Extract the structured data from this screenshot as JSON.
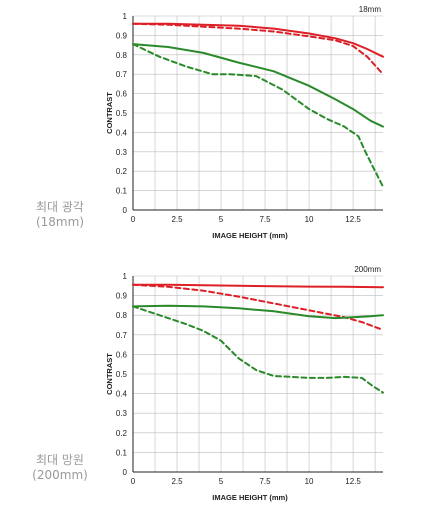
{
  "side_labels": [
    {
      "line1": "최대 광각",
      "line2": "(18mm)"
    },
    {
      "line1": "최대 망원",
      "line2": "(200mm)"
    }
  ],
  "colors": {
    "red": "#dd1f26",
    "green": "#2a8a2a",
    "grid": "#bdbdbd",
    "axis": "#222222"
  },
  "chart_data": [
    {
      "type": "line",
      "title": "18mm",
      "xlabel": "IMAGE HEIGHT (mm)",
      "ylabel": "CONTRAST",
      "xlim": [
        0,
        14.2
      ],
      "ylim": [
        0,
        1
      ],
      "xticks": [
        "0",
        "2.5",
        "5",
        "7.5",
        "10",
        "12.5"
      ],
      "yticks": [
        "0",
        "0.1",
        "0.2",
        "0.3",
        "0.4",
        "0.5",
        "0.6",
        "0.7",
        "0.8",
        "0.9",
        "1"
      ],
      "grid": true,
      "series": [
        {
          "color": "red",
          "style": "solid",
          "x": [
            0,
            2,
            4,
            6,
            8,
            10,
            11.5,
            12.5,
            13.3,
            14.2
          ],
          "y": [
            0.96,
            0.96,
            0.955,
            0.95,
            0.935,
            0.91,
            0.885,
            0.86,
            0.83,
            0.79
          ]
        },
        {
          "color": "red",
          "style": "dashed",
          "x": [
            0,
            2,
            4,
            6,
            8,
            10,
            11.5,
            12.5,
            13.3,
            14.2
          ],
          "y": [
            0.96,
            0.955,
            0.945,
            0.935,
            0.92,
            0.895,
            0.875,
            0.845,
            0.79,
            0.7
          ]
        },
        {
          "color": "green",
          "style": "solid",
          "x": [
            0,
            2,
            4,
            6,
            8,
            10,
            11.5,
            12.5,
            13.5,
            14.2
          ],
          "y": [
            0.855,
            0.84,
            0.81,
            0.76,
            0.715,
            0.64,
            0.57,
            0.52,
            0.46,
            0.43
          ]
        },
        {
          "color": "green",
          "style": "dashed",
          "x": [
            0,
            1.5,
            3,
            4.5,
            5.5,
            7,
            8.5,
            10,
            11,
            12,
            12.8,
            13.2,
            13.7,
            14.2
          ],
          "y": [
            0.855,
            0.79,
            0.74,
            0.7,
            0.7,
            0.69,
            0.62,
            0.52,
            0.47,
            0.43,
            0.38,
            0.3,
            0.21,
            0.12
          ]
        }
      ]
    },
    {
      "type": "line",
      "title": "200mm",
      "xlabel": "IMAGE HEIGHT (mm)",
      "ylabel": "CONTRAST",
      "xlim": [
        0,
        14.2
      ],
      "ylim": [
        0,
        1
      ],
      "xticks": [
        "0",
        "2.5",
        "5",
        "7.5",
        "10",
        "12.5"
      ],
      "yticks": [
        "0",
        "0.1",
        "0.2",
        "0.3",
        "0.4",
        "0.5",
        "0.6",
        "0.7",
        "0.8",
        "0.9",
        "1"
      ],
      "grid": true,
      "series": [
        {
          "color": "red",
          "style": "solid",
          "x": [
            0,
            2,
            4,
            6,
            8,
            10,
            12,
            14.2
          ],
          "y": [
            0.955,
            0.955,
            0.953,
            0.95,
            0.948,
            0.946,
            0.945,
            0.943
          ]
        },
        {
          "color": "red",
          "style": "dashed",
          "x": [
            0,
            2,
            4,
            6,
            8,
            10,
            12,
            13,
            14.2
          ],
          "y": [
            0.955,
            0.945,
            0.925,
            0.895,
            0.86,
            0.825,
            0.79,
            0.765,
            0.725
          ]
        },
        {
          "color": "green",
          "style": "solid",
          "x": [
            0,
            2,
            4,
            6,
            8,
            10,
            11.5,
            12.5,
            13.5,
            14.2
          ],
          "y": [
            0.845,
            0.848,
            0.845,
            0.835,
            0.82,
            0.795,
            0.785,
            0.79,
            0.795,
            0.8
          ]
        },
        {
          "color": "green",
          "style": "dashed",
          "x": [
            0,
            1.5,
            3,
            4,
            5,
            6,
            7,
            8,
            9,
            10,
            11,
            12,
            13,
            13.6,
            14.2
          ],
          "y": [
            0.845,
            0.8,
            0.755,
            0.72,
            0.67,
            0.58,
            0.52,
            0.49,
            0.485,
            0.48,
            0.48,
            0.485,
            0.48,
            0.44,
            0.405
          ]
        }
      ]
    }
  ]
}
